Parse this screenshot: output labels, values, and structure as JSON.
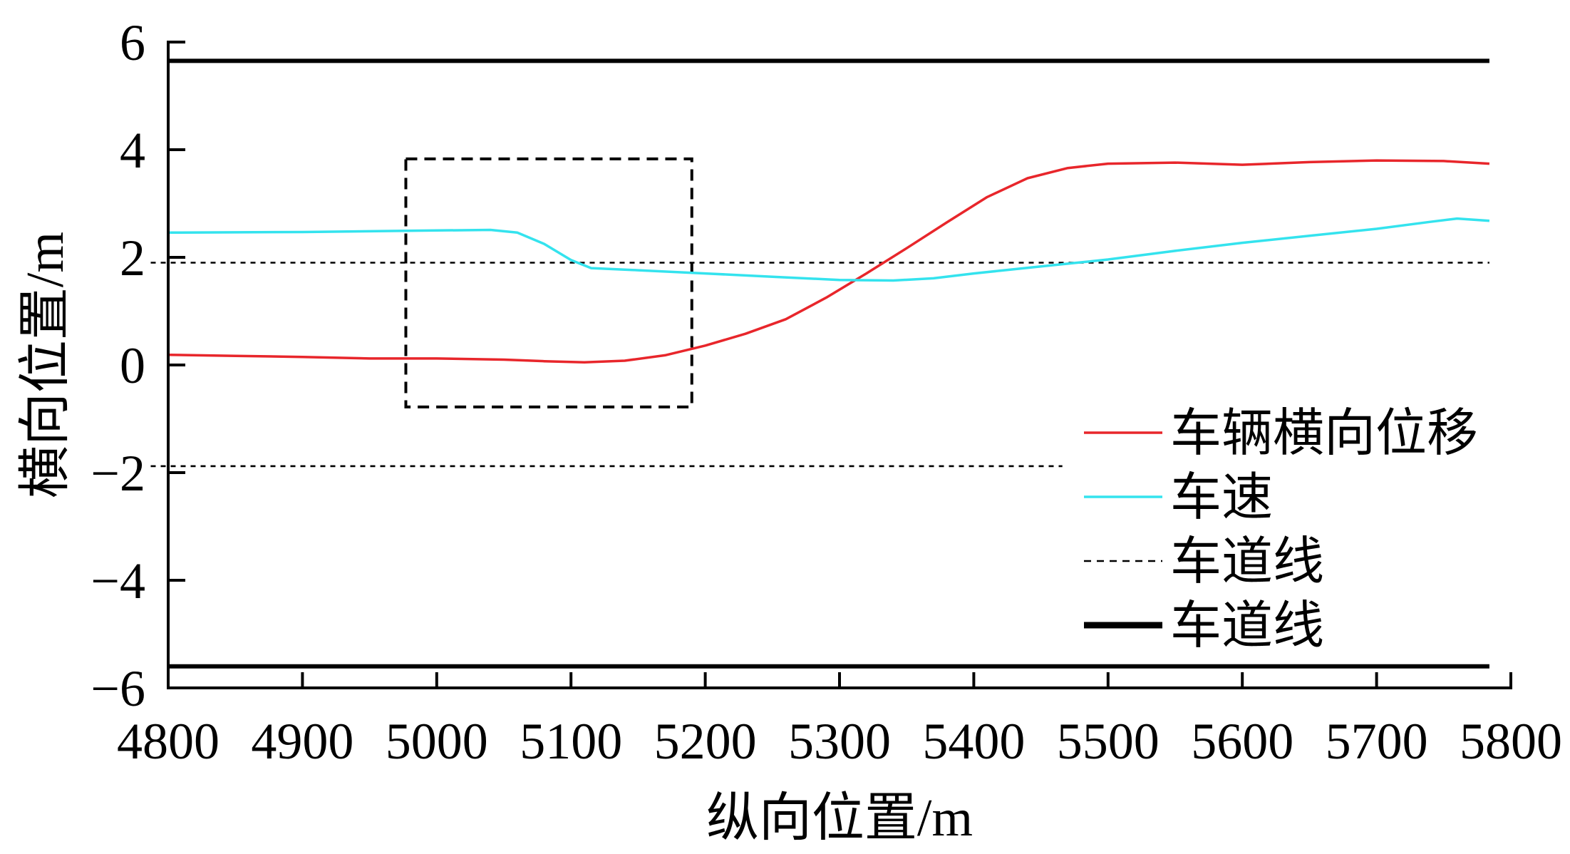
{
  "chart_data": {
    "type": "line",
    "xlabel": "纵向位置/m",
    "ylabel": "横向位置/m",
    "xlim": [
      4800,
      5800
    ],
    "ylim": [
      -6,
      6
    ],
    "grid": false,
    "legend_position": "right",
    "x_ticks": [
      {
        "value": 4800,
        "label": "4800"
      },
      {
        "value": 4900,
        "label": "4900"
      },
      {
        "value": 5000,
        "label": "5000"
      },
      {
        "value": 5100,
        "label": "5100"
      },
      {
        "value": 5200,
        "label": "5200"
      },
      {
        "value": 5300,
        "label": "5300"
      },
      {
        "value": 5400,
        "label": "5400"
      },
      {
        "value": 5500,
        "label": "5500"
      },
      {
        "value": 5600,
        "label": "5600"
      },
      {
        "value": 5700,
        "label": "5700"
      },
      {
        "value": 5800,
        "label": "5800"
      }
    ],
    "y_ticks": [
      {
        "value": 6,
        "label": "6"
      },
      {
        "value": 4,
        "label": "4"
      },
      {
        "value": 2,
        "label": "2"
      },
      {
        "value": 0,
        "label": "0"
      },
      {
        "value": -2,
        "label": "−2"
      },
      {
        "value": -4,
        "label": "−4"
      },
      {
        "value": -6,
        "label": "−6"
      }
    ],
    "series": [
      {
        "name": "车辆横向位移",
        "color": "#e8262b",
        "style": "solid",
        "segments": [
          [
            [
              4800,
              0.19
            ],
            [
              4850,
              0.17
            ],
            [
              4900,
              0.15
            ],
            [
              4950,
              0.12
            ],
            [
              5000,
              0.12
            ],
            [
              5050,
              0.1
            ],
            [
              5080,
              0.07
            ],
            [
              5110,
              0.05
            ],
            [
              5140,
              0.08
            ],
            [
              5170,
              0.18
            ],
            [
              5200,
              0.36
            ],
            [
              5230,
              0.58
            ],
            [
              5260,
              0.85
            ],
            [
              5290,
              1.25
            ],
            [
              5320,
              1.7
            ],
            [
              5350,
              2.17
            ],
            [
              5380,
              2.65
            ],
            [
              5410,
              3.12
            ],
            [
              5440,
              3.47
            ],
            [
              5470,
              3.66
            ],
            [
              5500,
              3.74
            ],
            [
              5550,
              3.76
            ],
            [
              5600,
              3.72
            ],
            [
              5650,
              3.77
            ],
            [
              5700,
              3.8
            ],
            [
              5750,
              3.79
            ],
            [
              5784,
              3.74
            ]
          ]
        ]
      },
      {
        "name": "车速",
        "color": "#34e3ee",
        "style": "solid",
        "segments": [
          [
            [
              4800,
              2.46
            ],
            [
              4900,
              2.47
            ],
            [
              5000,
              2.5
            ],
            [
              5040,
              2.51
            ],
            [
              5060,
              2.46
            ],
            [
              5080,
              2.25
            ],
            [
              5100,
              1.95
            ],
            [
              5115,
              1.8
            ],
            [
              5150,
              1.76
            ],
            [
              5200,
              1.7
            ],
            [
              5250,
              1.64
            ],
            [
              5300,
              1.58
            ],
            [
              5340,
              1.57
            ],
            [
              5370,
              1.61
            ],
            [
              5400,
              1.7
            ],
            [
              5450,
              1.83
            ],
            [
              5500,
              1.96
            ],
            [
              5550,
              2.12
            ],
            [
              5600,
              2.27
            ],
            [
              5650,
              2.4
            ],
            [
              5700,
              2.53
            ],
            [
              5740,
              2.66
            ],
            [
              5760,
              2.72
            ],
            [
              5784,
              2.68
            ]
          ]
        ]
      },
      {
        "name": "车道线",
        "color": "#000000",
        "style": "dotted",
        "segments": [
          [
            [
              4787,
              1.9
            ],
            [
              5784,
              1.9
            ]
          ],
          [
            [
              4787,
              -1.88
            ],
            [
              5466,
              -1.88
            ]
          ]
        ]
      },
      {
        "name": "车道线",
        "color": "#000000",
        "style": "thick",
        "segments": [
          [
            [
              4800,
              5.65
            ],
            [
              5784,
              5.65
            ]
          ],
          [
            [
              4800,
              -5.6
            ],
            [
              5784,
              -5.6
            ]
          ]
        ]
      }
    ],
    "annotations": [
      {
        "type": "dashed-box",
        "x0": 4977,
        "x1": 5190,
        "y0": -0.78,
        "y1": 3.83,
        "color": "#000000"
      }
    ]
  }
}
